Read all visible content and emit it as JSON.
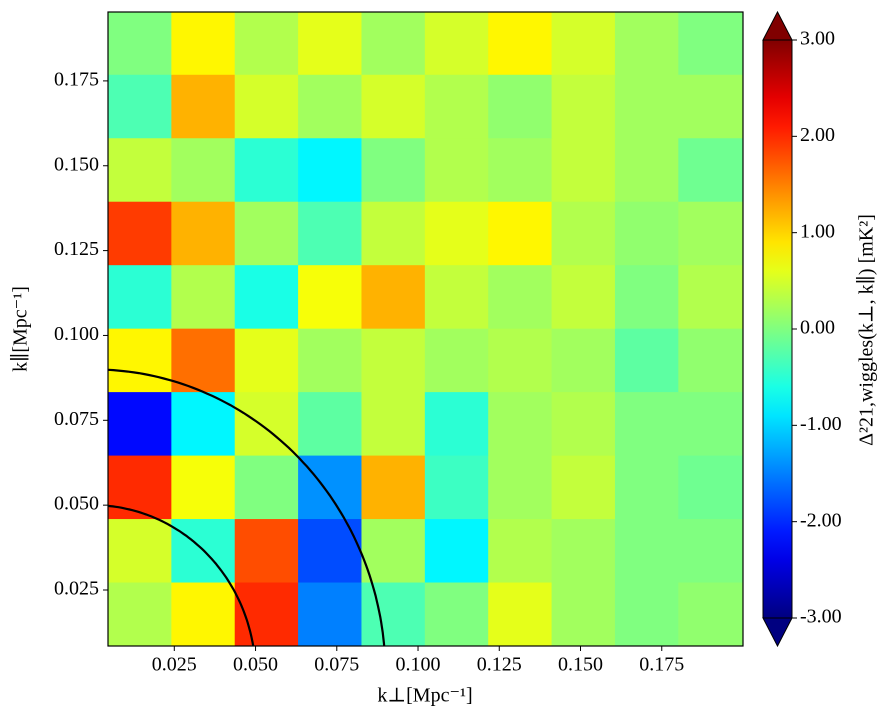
{
  "chart_data": {
    "type": "contour",
    "x_label": "k⊥[Mpc⁻¹]",
    "y_label": "k∥[Mpc⁻¹]",
    "colorbar_label": "Δ²21,wiggles(k⊥, k∥) [mK²]",
    "colormap": "jet",
    "colorbar_extend": "both",
    "x": [
      0.0145,
      0.034,
      0.0535,
      0.073,
      0.0925,
      0.112,
      0.1315,
      0.151,
      0.1705,
      0.19
    ],
    "y": [
      0.018,
      0.0367,
      0.0554,
      0.0741,
      0.0928,
      0.1115,
      0.1302,
      0.1489,
      0.1676,
      0.1863
    ],
    "z": [
      [
        0.3,
        0.8,
        2.0,
        -1.5,
        -0.3,
        0.0,
        0.6,
        0.2,
        0.0,
        0.1
      ],
      [
        0.5,
        -0.5,
        1.8,
        -1.8,
        0.2,
        -0.8,
        0.3,
        0.2,
        0.0,
        0.0
      ],
      [
        2.0,
        0.7,
        0.0,
        -1.4,
        1.2,
        -0.4,
        0.2,
        0.4,
        0.0,
        -0.1
      ],
      [
        -2.2,
        -0.8,
        0.5,
        -0.2,
        0.4,
        -0.5,
        0.2,
        0.3,
        0.0,
        0.0
      ],
      [
        0.8,
        1.6,
        0.6,
        0.2,
        0.4,
        0.2,
        0.3,
        0.2,
        -0.2,
        0.1
      ],
      [
        -0.5,
        0.3,
        -0.6,
        0.7,
        1.2,
        0.4,
        0.2,
        0.4,
        0.0,
        0.3
      ],
      [
        1.9,
        1.2,
        0.2,
        -0.3,
        0.4,
        0.6,
        0.8,
        0.3,
        0.1,
        0.2
      ],
      [
        0.4,
        0.2,
        -0.5,
        -0.8,
        0.0,
        0.3,
        0.2,
        0.4,
        0.2,
        -0.1
      ],
      [
        -0.3,
        1.2,
        0.5,
        0.2,
        0.5,
        0.3,
        0.1,
        0.4,
        0.2,
        0.2
      ],
      [
        0.0,
        0.8,
        0.3,
        0.6,
        0.2,
        0.5,
        0.8,
        0.5,
        0.2,
        0.0
      ]
    ],
    "circles": [
      {
        "radius": 0.05,
        "color": "#000000"
      },
      {
        "radius": 0.09,
        "color": "#000000"
      }
    ],
    "xlim": [
      0.0046,
      0.2
    ],
    "ylim": [
      0.0085,
      0.1953
    ],
    "xticks": [
      0.025,
      {
        "value": 0.05,
        "label": "0.050"
      },
      0.075,
      {
        "value": 0.1,
        "label": "0.100"
      },
      0.125,
      {
        "value": 0.15,
        "label": "0.150"
      },
      0.175
    ],
    "yticks": [
      0.025,
      {
        "value": 0.05,
        "label": "0.050"
      },
      0.075,
      {
        "value": 0.1,
        "label": "0.100"
      },
      0.125,
      {
        "value": 0.15,
        "label": "0.150"
      },
      0.175
    ],
    "clim": [
      -3,
      3
    ],
    "cticks": [
      {
        "value": 3,
        "label": "3.00"
      },
      {
        "value": 2,
        "label": "2.00"
      },
      {
        "value": 1,
        "label": "1.00"
      },
      {
        "value": 0,
        "label": "0.00"
      },
      {
        "value": -1,
        "label": "-1.00"
      },
      {
        "value": -2,
        "label": "-2.00"
      },
      {
        "value": -3,
        "label": "-3.00"
      }
    ]
  }
}
